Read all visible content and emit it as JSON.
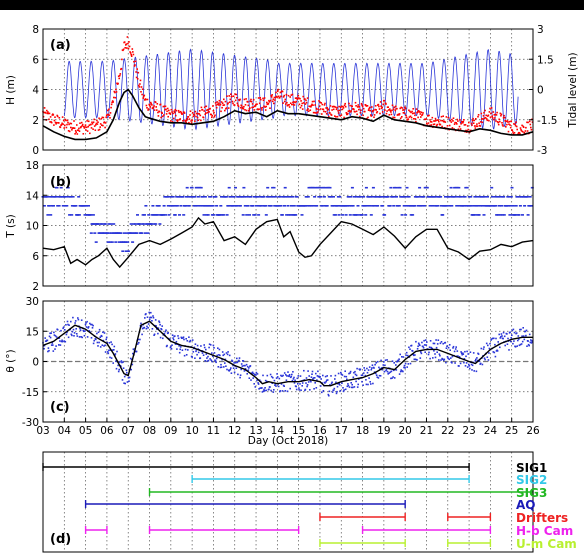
{
  "chart_data": [
    {
      "panel": "(a)",
      "type": "line",
      "ylabel": "H (m)",
      "ylabel_right": "Tidal level (m)",
      "xlim": [
        3,
        26
      ],
      "ylim": [
        0,
        8
      ],
      "yticks": [
        0,
        2,
        4,
        6,
        8
      ],
      "ylim_right": [
        -3,
        3
      ],
      "yticks_right": [
        -3,
        -1.5,
        0,
        1.5,
        3
      ],
      "yticks_right_labels": [
        "-3",
        "-1.5",
        "0",
        "1.5",
        "3"
      ],
      "grid": true,
      "series": [
        {
          "color": "#000000",
          "style": "line",
          "x": [
            3,
            3.5,
            4,
            4.5,
            5,
            5.5,
            6,
            6.3,
            6.6,
            6.8,
            7,
            7.2,
            7.5,
            7.8,
            8,
            8.5,
            9,
            9.5,
            10,
            10.5,
            11,
            11.5,
            12,
            12.5,
            13,
            13.5,
            14,
            14.5,
            15,
            15.5,
            16,
            16.5,
            17,
            17.5,
            18,
            18.5,
            19,
            19.5,
            20,
            20.5,
            21,
            21.5,
            22,
            22.5,
            23,
            23.5,
            24,
            24.5,
            25,
            25.5,
            26
          ],
          "y": [
            1.6,
            1.2,
            0.9,
            0.7,
            0.7,
            0.8,
            1.2,
            2.0,
            3.2,
            3.8,
            4.0,
            3.6,
            2.8,
            2.2,
            2.1,
            1.9,
            1.8,
            1.8,
            1.7,
            1.8,
            1.9,
            2.2,
            2.6,
            2.4,
            2.5,
            2.2,
            2.6,
            2.4,
            2.4,
            2.3,
            2.2,
            2.1,
            2.0,
            2.2,
            2.1,
            1.9,
            2.3,
            2.0,
            1.9,
            1.8,
            1.6,
            1.5,
            1.4,
            1.3,
            1.2,
            1.4,
            1.3,
            1.1,
            1.0,
            1.0,
            1.2
          ]
        },
        {
          "color": "#ff0000",
          "style": "dots",
          "x": [
            3,
            3.5,
            4,
            4.5,
            5,
            5.5,
            6,
            6.3,
            6.6,
            6.8,
            7,
            7.2,
            7.5,
            7.8,
            8,
            8.5,
            9,
            9.5,
            10,
            10.5,
            11,
            11.5,
            12,
            12.5,
            13,
            13.5,
            14,
            14.5,
            15,
            15.5,
            16,
            16.5,
            17,
            17.5,
            18,
            18.5,
            19,
            19.5,
            20,
            20.5,
            21,
            21.5,
            22,
            22.5,
            23,
            23.5,
            24,
            24.5,
            25,
            25.5,
            26
          ],
          "y": [
            2.4,
            2.0,
            1.7,
            1.5,
            1.5,
            1.6,
            2.0,
            3.2,
            5.0,
            6.8,
            7.2,
            6.4,
            4.5,
            3.2,
            3.0,
            2.6,
            2.3,
            2.2,
            2.2,
            2.4,
            2.6,
            3.0,
            3.4,
            3.0,
            3.1,
            3.0,
            3.6,
            3.3,
            3.2,
            3.0,
            2.8,
            2.6,
            2.5,
            2.8,
            2.6,
            2.4,
            2.9,
            2.5,
            2.4,
            2.3,
            2.0,
            1.9,
            1.8,
            1.7,
            1.6,
            2.0,
            2.4,
            2.0,
            1.5,
            1.4,
            1.6
          ]
        },
        {
          "color": "#2a35d8",
          "style": "line",
          "axis": "right",
          "description_free": true,
          "amplitude_m": [
            1.4,
            2.0,
            1.3
          ],
          "period_days": 0.5175
        }
      ]
    },
    {
      "panel": "(b)",
      "type": "line",
      "ylabel": "T (s)",
      "xlim": [
        3,
        26
      ],
      "ylim": [
        2,
        18
      ],
      "yticks": [
        2,
        6,
        10,
        14,
        18
      ],
      "grid": true,
      "series": [
        {
          "color": "#000000",
          "style": "line",
          "x": [
            3,
            3.5,
            4,
            4.3,
            4.6,
            5,
            5.3,
            5.6,
            6,
            6.3,
            6.6,
            7,
            7.5,
            8,
            8.5,
            9,
            9.5,
            10,
            10.3,
            10.6,
            11,
            11.5,
            12,
            12.5,
            13,
            13.5,
            14,
            14.3,
            14.6,
            15,
            15.3,
            15.6,
            16,
            16.5,
            17,
            17.5,
            18,
            18.5,
            19,
            19.5,
            20,
            20.5,
            21,
            21.5,
            22,
            22.5,
            23,
            23.5,
            24,
            24.5,
            25,
            25.5,
            26
          ],
          "y": [
            7.0,
            6.8,
            7.2,
            5.0,
            5.5,
            4.8,
            5.5,
            6.0,
            7.0,
            5.5,
            4.5,
            5.8,
            7.5,
            8.0,
            7.5,
            8.2,
            9.0,
            9.8,
            11.0,
            10.2,
            10.5,
            8.0,
            8.5,
            7.5,
            9.5,
            10.5,
            10.8,
            8.5,
            9.2,
            6.5,
            5.8,
            6.0,
            7.5,
            9.0,
            10.5,
            10.2,
            9.5,
            8.8,
            9.8,
            8.6,
            7.0,
            8.5,
            9.5,
            9.5,
            7.0,
            6.5,
            5.5,
            6.6,
            6.8,
            7.5,
            7.2,
            7.8,
            8.0
          ]
        },
        {
          "color": "#2a35d8",
          "style": "dots",
          "x": [
            3,
            3.5,
            4,
            4.5,
            5,
            5.5,
            6,
            6.5,
            7,
            7.5,
            8,
            8.5,
            9,
            9.5,
            10,
            10.5,
            11,
            11.5,
            12,
            12.5,
            13,
            13.5,
            14,
            14.5,
            15,
            15.5,
            16,
            16.5,
            17,
            17.5,
            18,
            18.5,
            19,
            19.5,
            20,
            20.5,
            21,
            21.5,
            22,
            22.5,
            23,
            23.5,
            24,
            24.5,
            25,
            25.5,
            26
          ],
          "y": [
            12.0,
            12.5,
            13.0,
            12.0,
            11.5,
            9.0,
            8.5,
            8.0,
            7.5,
            9.5,
            10.5,
            11.0,
            12.0,
            12.5,
            13.0,
            12.5,
            12.0,
            12.5,
            13.0,
            12.5,
            12.0,
            12.5,
            13.0,
            12.5,
            12.0,
            13.5,
            13.0,
            12.5,
            12.0,
            12.5,
            12.0,
            13.0,
            12.0,
            13.0,
            12.5,
            12.5,
            13.0,
            12.5,
            13.0,
            13.5,
            12.5,
            12.0,
            13.0,
            12.0,
            12.5,
            12.0,
            12.5
          ]
        }
      ]
    },
    {
      "panel": "(c)",
      "type": "line",
      "ylabel": "θ (°)",
      "xlabel": "Day (Oct 2018)",
      "xlim": [
        3,
        26
      ],
      "ylim": [
        -30,
        30
      ],
      "yticks": [
        -30,
        -15,
        0,
        15,
        30
      ],
      "xticks": [
        "03",
        "04",
        "05",
        "06",
        "07",
        "08",
        "09",
        "10",
        "11",
        "12",
        "13",
        "14",
        "15",
        "16",
        "17",
        "18",
        "19",
        "20",
        "21",
        "22",
        "23",
        "24",
        "25",
        "26"
      ],
      "grid": true,
      "zero_line": 0,
      "series": [
        {
          "color": "#000000",
          "style": "line",
          "x": [
            3,
            3.5,
            4,
            4.5,
            5,
            5.5,
            6,
            6.3,
            6.6,
            6.8,
            7,
            7.3,
            7.6,
            8,
            8.5,
            9,
            9.5,
            10,
            10.5,
            11,
            11.5,
            12,
            12.5,
            13,
            13.3,
            13.6,
            14,
            14.5,
            15,
            15.5,
            16,
            16.2,
            16.5,
            17,
            17.5,
            18,
            18.5,
            19,
            19.5,
            20,
            20.5,
            21,
            21.5,
            22,
            22.5,
            23,
            23.3,
            23.6,
            24,
            24.5,
            25,
            25.5,
            26
          ],
          "y": [
            8,
            10,
            14,
            18,
            16,
            12,
            9,
            4,
            -2,
            -6,
            -7,
            5,
            18,
            20,
            15,
            10,
            8,
            7,
            5,
            3,
            1,
            -2,
            -4,
            -8,
            -11,
            -10,
            -11,
            -10,
            -10,
            -9,
            -10,
            -12,
            -12,
            -10,
            -9,
            -8,
            -6,
            -3,
            -4,
            1,
            5,
            6,
            6,
            4,
            2,
            0,
            -1,
            2,
            6,
            9,
            11,
            12,
            12
          ]
        },
        {
          "color": "#2a35d8",
          "style": "dots",
          "x": [
            3,
            3.5,
            4,
            4.5,
            5,
            5.5,
            6,
            6.3,
            6.6,
            6.8,
            7,
            7.3,
            7.6,
            8,
            8.5,
            9,
            9.5,
            10,
            10.5,
            11,
            11.5,
            12,
            12.5,
            13,
            13.3,
            13.6,
            14,
            14.5,
            15,
            15.5,
            16,
            16.2,
            16.5,
            17,
            17.5,
            18,
            18.5,
            19,
            19.5,
            20,
            20.5,
            21,
            21.5,
            22,
            22.5,
            23,
            23.3,
            23.6,
            24,
            24.5,
            25,
            25.5,
            26
          ],
          "y": [
            8,
            10,
            14,
            18,
            16,
            12,
            9,
            4,
            -2,
            -6,
            -7,
            5,
            18,
            20,
            15,
            10,
            8,
            7,
            5,
            3,
            1,
            -2,
            -4,
            -8,
            -11,
            -10,
            -11,
            -10,
            -10,
            -9,
            -10,
            -12,
            -12,
            -10,
            -9,
            -8,
            -6,
            -3,
            -4,
            1,
            5,
            6,
            6,
            4,
            2,
            0,
            -1,
            2,
            6,
            9,
            11,
            12,
            12
          ],
          "spread": 5
        }
      ]
    },
    {
      "panel": "(d)",
      "type": "gantt",
      "xlim": [
        3,
        26
      ],
      "instruments": [
        {
          "label": "SIG1",
          "color": "#000000",
          "segments": [
            [
              3,
              23
            ]
          ]
        },
        {
          "label": "SIG2",
          "color": "#33c8e8",
          "segments": [
            [
              10,
              23
            ]
          ]
        },
        {
          "label": "SIG3",
          "color": "#22b822",
          "segments": [
            [
              8,
              26
            ]
          ]
        },
        {
          "label": "AQ",
          "color": "#1a1ab8",
          "segments": [
            [
              5,
              20
            ]
          ]
        },
        {
          "label": "Drifters",
          "color": "#ee2222",
          "segments": [
            [
              16,
              20
            ],
            [
              22,
              24
            ]
          ]
        },
        {
          "label": "H-b Cam",
          "color": "#ee22ee",
          "segments": [
            [
              5,
              6
            ],
            [
              8,
              15
            ],
            [
              18,
              24
            ]
          ]
        },
        {
          "label": "U-m Cam",
          "color": "#b8f030",
          "segments": [
            [
              16,
              20
            ],
            [
              22,
              24
            ]
          ]
        }
      ]
    }
  ]
}
